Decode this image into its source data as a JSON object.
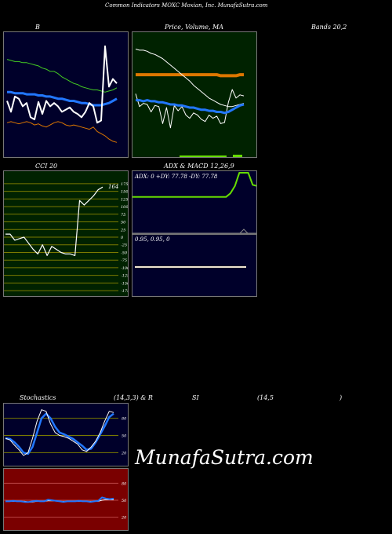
{
  "title": "Common Indicators MOXC Moxian, Inc. MunafaSutra.com",
  "watermark": "MunafaSutra.com",
  "headers": {
    "bollinger": "B",
    "bollinger_cont": "Bands 20,2",
    "price_volume": "Price, Volume, MA",
    "cci": "CCI 20",
    "adx_macd": "ADX & MACD 12,26,9",
    "stoch": "Stochastics",
    "stoch_params": "(14,3,3) & R",
    "rsi": "SI",
    "rsi_params": "(14,5",
    "rsi_close": ")"
  },
  "colors": {
    "navy": "#00002a",
    "darkgreen": "#002200",
    "darkred": "#7a0000",
    "white": "#ffffff",
    "green": "#44cc22",
    "lime": "#66dd00",
    "blue": "#2277ff",
    "orange": "#dd7700",
    "olive": "#7a7a00"
  },
  "chart_data": [
    {
      "id": "bollinger",
      "type": "line",
      "title": "B Bands 20,2",
      "series": [
        {
          "role": "upper",
          "values": [
            88,
            87,
            86,
            86,
            85,
            85,
            84,
            83,
            82,
            80,
            79,
            77,
            77,
            75,
            72,
            70,
            68,
            66,
            65,
            63,
            62,
            61,
            60,
            60,
            59,
            58,
            59,
            60,
            62
          ]
        },
        {
          "role": "middle",
          "values": [
            58,
            58,
            57,
            57,
            57,
            56,
            56,
            56,
            55,
            55,
            54,
            54,
            53,
            52,
            52,
            51,
            50,
            50,
            49,
            48,
            48,
            47,
            46,
            46,
            46,
            47,
            48,
            50,
            52
          ]
        },
        {
          "role": "lower",
          "values": [
            30,
            31,
            30,
            29,
            30,
            31,
            30,
            28,
            29,
            27,
            26,
            28,
            30,
            31,
            30,
            28,
            27,
            28,
            27,
            26,
            25,
            24,
            26,
            22,
            20,
            18,
            15,
            13,
            12
          ]
        },
        {
          "role": "price",
          "values": [
            50,
            40,
            54,
            52,
            45,
            48,
            35,
            33,
            49,
            38,
            50,
            45,
            48,
            45,
            40,
            42,
            44,
            40,
            38,
            35,
            40,
            48,
            45,
            30,
            32,
            100,
            63,
            70,
            66
          ]
        }
      ],
      "ylim": [
        0,
        110
      ]
    },
    {
      "id": "price_volume",
      "type": "line",
      "title": "Price, Volume, MA",
      "series": [
        {
          "role": "price",
          "values": [
            58,
            46,
            49,
            48,
            41,
            47,
            46,
            30,
            45,
            26,
            47,
            42,
            46,
            38,
            35,
            40,
            38,
            34,
            32,
            38,
            35,
            37,
            30,
            31,
            50,
            62,
            54,
            57,
            56
          ]
        },
        {
          "role": "ma_short",
          "values": [
            76,
            76,
            76,
            76,
            76,
            76,
            76,
            76,
            76,
            76,
            76,
            76,
            76,
            76,
            76,
            76,
            76,
            76,
            76,
            76,
            76,
            76,
            75,
            75,
            75,
            75,
            75,
            76,
            76
          ]
        },
        {
          "role": "ma_long",
          "values": [
            100,
            99,
            99,
            98,
            96,
            95,
            93,
            91,
            88,
            85,
            82,
            79,
            76,
            73,
            70,
            66,
            63,
            60,
            57,
            54,
            52,
            50,
            48,
            47,
            46,
            46,
            47,
            48,
            49
          ]
        },
        {
          "role": "ma_blue",
          "values": [
            52,
            52,
            51,
            52,
            51,
            51,
            50,
            50,
            49,
            48,
            48,
            47,
            47,
            46,
            45,
            45,
            44,
            43,
            43,
            42,
            42,
            41,
            41,
            40,
            41,
            43,
            45,
            47,
            48
          ]
        }
      ],
      "ylim": [
        0,
        110
      ]
    },
    {
      "id": "cci",
      "type": "line",
      "title": "CCI 20",
      "series": [
        {
          "name": "CCI",
          "values": [
            10,
            10,
            -10,
            -5,
            0,
            -20,
            -40,
            -55,
            -25,
            -60,
            -30,
            -40,
            -50,
            -55,
            -55,
            -60,
            120,
            105,
            120,
            135,
            155,
            164
          ]
        }
      ],
      "yticks": [
        175,
        150,
        125,
        100,
        75,
        50,
        25,
        0,
        -25,
        -50,
        -75,
        -100,
        -125,
        -150,
        -175
      ],
      "last_label": "164",
      "ylim": [
        -185,
        185
      ]
    },
    {
      "id": "adx",
      "type": "line",
      "title": "ADX & MACD 12,26,9",
      "readout": "ADX: 0  +DY: 77.78  -DY: 77.78",
      "series": [
        {
          "name": "ADX",
          "values": [
            60,
            60,
            60,
            60,
            60,
            60,
            60,
            60,
            60,
            60,
            60,
            60,
            60,
            60,
            60,
            60,
            60,
            60,
            60,
            60,
            60,
            60,
            66,
            78,
            100,
            100,
            100,
            80,
            78
          ]
        },
        {
          "name": "+DY",
          "values": [
            0,
            0,
            0,
            0,
            0,
            0,
            0,
            0,
            0,
            0,
            0,
            0,
            0,
            0,
            0,
            0,
            0,
            0,
            0,
            0,
            0,
            0,
            0,
            0,
            0,
            0,
            0,
            0,
            0
          ]
        }
      ],
      "ylim": [
        0,
        100
      ]
    },
    {
      "id": "macd",
      "type": "line",
      "readout": "0.95,  0.95,  0",
      "series": [
        {
          "name": "MACD",
          "values": [
            0,
            0,
            0,
            0,
            0,
            0,
            0,
            0,
            0,
            0,
            0,
            0,
            0,
            0,
            0,
            0,
            0,
            0,
            0,
            0,
            0,
            0,
            0,
            0,
            0,
            0,
            0,
            0,
            0
          ]
        }
      ],
      "ylim": [
        -1,
        1
      ]
    },
    {
      "id": "stochastics",
      "type": "line",
      "title": "Stochastics (14,3,3)",
      "series": [
        {
          "role": "fast",
          "values": [
            45,
            42,
            33,
            25,
            15,
            20,
            45,
            75,
            95,
            92,
            70,
            55,
            50,
            48,
            45,
            40,
            35,
            25,
            22,
            30,
            40,
            55,
            75,
            92,
            90
          ]
        },
        {
          "role": "slow",
          "values": [
            45,
            44,
            38,
            30,
            20,
            18,
            30,
            55,
            80,
            88,
            80,
            65,
            55,
            52,
            48,
            44,
            38,
            32,
            25,
            27,
            38,
            52,
            66,
            82,
            88
          ]
        }
      ],
      "yticks": [
        80,
        50,
        20
      ],
      "ylim": [
        0,
        100
      ]
    },
    {
      "id": "rsi",
      "type": "line",
      "title": "RSI (14,5)",
      "series": [
        {
          "role": "rsi",
          "values": [
            48,
            48,
            49,
            48,
            48,
            47,
            47,
            48,
            49,
            48,
            48,
            51,
            50,
            49,
            48,
            47,
            48,
            48,
            48,
            49,
            48,
            48,
            47,
            48,
            49,
            55,
            53,
            52,
            53
          ]
        },
        {
          "role": "smooth",
          "values": [
            48,
            48,
            48,
            48,
            48,
            48,
            47,
            47,
            48,
            48,
            48,
            49,
            49,
            49,
            48,
            48,
            48,
            48,
            48,
            48,
            48,
            48,
            48,
            48,
            48,
            50,
            51,
            51,
            51
          ]
        }
      ],
      "yticks": [
        80,
        50,
        20
      ],
      "ylim": [
        0,
        100
      ]
    }
  ]
}
